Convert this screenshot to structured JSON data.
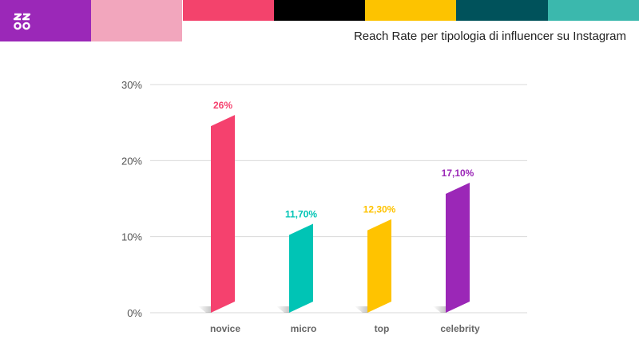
{
  "header": {
    "logo": "zoo-logo",
    "title": "Reach Rate per tipologia di influencer su Instagram",
    "strip_colors": [
      "#9b28b8",
      "#f2a6bd",
      "#f3436c",
      "#000000",
      "#fdc300",
      "#00525b",
      "#3bb8ad"
    ]
  },
  "chart_data": {
    "type": "bar",
    "title": "Reach Rate per tipologia di influencer su Instagram",
    "categories": [
      "novice",
      "micro",
      "top",
      "celebrity"
    ],
    "values": [
      26,
      11.7,
      12.3,
      17.1
    ],
    "value_labels": [
      "26%",
      "11,70%",
      "12,30%",
      "17,10%"
    ],
    "colors": [
      "#f5416e",
      "#00c4b5",
      "#ffc300",
      "#9b27b7"
    ],
    "ylim": [
      0,
      30
    ],
    "yticks": [
      0,
      10,
      20,
      30
    ],
    "ytick_labels": [
      "0%",
      "10%",
      "20%",
      "30%"
    ],
    "xlabel": "",
    "ylabel": "",
    "grid": true,
    "legend": "none"
  }
}
